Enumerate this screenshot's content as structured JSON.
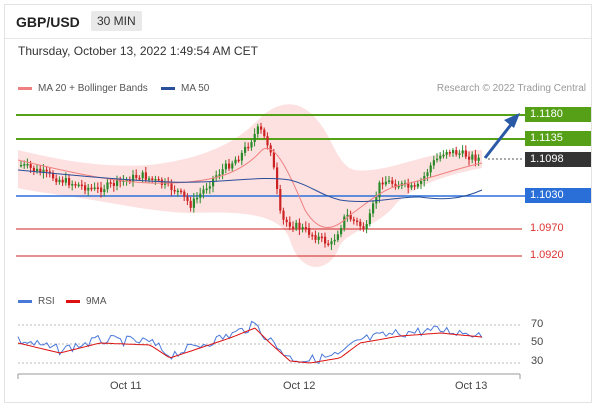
{
  "header": {
    "pair": "GBP/USD",
    "timeframe": "30 MIN"
  },
  "timestamp": "Thursday, October 13, 2022 1:49:54 AM CET",
  "legend": {
    "ma_boll": "MA 20 + Bollinger Bands",
    "ma50": "MA 50"
  },
  "credit": "Research © 2022 Trading Central",
  "price_levels": [
    {
      "value": "1.1180",
      "color": "#55a016",
      "style": "box"
    },
    {
      "value": "1.1135",
      "color": "#55a016",
      "style": "box"
    },
    {
      "value": "1.1098",
      "color": "#333333",
      "style": "box"
    },
    {
      "value": "1.1030",
      "color": "#2a6fd8",
      "style": "box"
    },
    {
      "value": "1.0970",
      "color": "#d33333",
      "style": "text"
    },
    {
      "value": "1.0920",
      "color": "#d33333",
      "style": "text"
    }
  ],
  "rsi_legend": {
    "rsi": "RSI",
    "ma9": "9MA"
  },
  "rsi_axis": [
    "70",
    "50",
    "30"
  ],
  "x_ticks": [
    "Oct 11",
    "Oct 12",
    "Oct 13"
  ],
  "colors": {
    "ma20": "#f08080",
    "ma50": "#2a4f9a",
    "bull": "#2a8a2a",
    "bear": "#cc2222",
    "support": "#2a6fd8",
    "resistance": "#55a016"
  }
}
